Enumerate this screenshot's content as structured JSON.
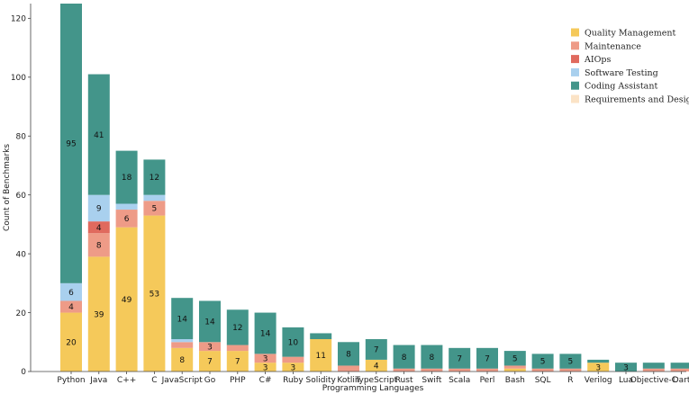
{
  "chart_data": {
    "type": "bar",
    "stacked": true,
    "xlabel": "Programming Languages",
    "ylabel": "Count of Benchmarks",
    "ylim": [
      0,
      125
    ],
    "yticks": [
      0,
      20,
      40,
      60,
      80,
      100,
      120
    ],
    "grid": false,
    "legend_position": "top-right",
    "categories": [
      "Python",
      "Java",
      "C++",
      "C",
      "JavaScript",
      "Go",
      "PHP",
      "C#",
      "Ruby",
      "Solidity",
      "Kotlin",
      "TypeScript",
      "Rust",
      "Swift",
      "Scala",
      "Perl",
      "Bash",
      "SQL",
      "R",
      "Verilog",
      "Lua",
      "Objective-C",
      "Dart"
    ],
    "series": [
      {
        "name": "Quality Management",
        "color": "#F5C95A",
        "values": [
          20,
          39,
          49,
          53,
          8,
          7,
          7,
          3,
          3,
          11,
          0,
          4,
          0,
          0,
          0,
          0,
          1,
          0,
          0,
          3,
          0,
          0,
          0
        ],
        "labels": [
          "20",
          "39",
          "49",
          "53",
          "8",
          "7",
          "7",
          "3",
          "3",
          "11",
          "",
          "4",
          "",
          "",
          "",
          "",
          "",
          "",
          "",
          "3",
          "",
          "",
          ""
        ]
      },
      {
        "name": "Maintenance",
        "color": "#EE9B87",
        "values": [
          4,
          8,
          6,
          5,
          2,
          3,
          2,
          3,
          2,
          0,
          2,
          0,
          1,
          1,
          1,
          1,
          1,
          1,
          1,
          0,
          0,
          1,
          1
        ],
        "labels": [
          "4",
          "8",
          "6",
          "5",
          "",
          "3",
          "",
          "3",
          "",
          "",
          "",
          "",
          "",
          "",
          "",
          "",
          "",
          "",
          "",
          "",
          "",
          "",
          ""
        ]
      },
      {
        "name": "AIOps",
        "color": "#E06A5E",
        "values": [
          0,
          4,
          0,
          0,
          0,
          0,
          0,
          0,
          0,
          0,
          0,
          0,
          0,
          0,
          0,
          0,
          0,
          0,
          0,
          0,
          0,
          0,
          0
        ],
        "labels": [
          "",
          "4",
          "",
          "",
          "",
          "",
          "",
          "",
          "",
          "",
          "",
          "",
          "",
          "",
          "",
          "",
          "",
          "",
          "",
          "",
          "",
          "",
          ""
        ]
      },
      {
        "name": "Software Testing",
        "color": "#A9D0EE",
        "values": [
          6,
          9,
          2,
          2,
          1,
          0,
          0,
          0,
          0,
          0,
          0,
          0,
          0,
          0,
          0,
          0,
          0,
          0,
          0,
          0,
          0,
          0,
          0
        ],
        "labels": [
          "6",
          "9",
          "",
          "",
          "",
          "",
          "",
          "",
          "",
          "",
          "",
          "",
          "",
          "",
          "",
          "",
          "",
          "",
          "",
          "",
          "",
          "",
          ""
        ]
      },
      {
        "name": "Coding Assistant",
        "color": "#43958A",
        "values": [
          95,
          41,
          18,
          12,
          14,
          14,
          12,
          14,
          10,
          2,
          8,
          7,
          8,
          8,
          7,
          7,
          5,
          5,
          5,
          1,
          3,
          2,
          2
        ],
        "labels": [
          "95",
          "41",
          "18",
          "12",
          "14",
          "14",
          "12",
          "14",
          "10",
          "",
          "8",
          "7",
          "8",
          "8",
          "7",
          "7",
          "5",
          "5",
          "5",
          "",
          "3",
          "",
          ""
        ]
      },
      {
        "name": "Requirements and Design",
        "color": "#FBE3C6",
        "values": [
          0,
          0,
          0,
          0,
          0,
          0,
          0,
          0,
          0,
          0,
          0,
          0,
          0,
          0,
          0,
          0,
          0,
          0,
          0,
          0,
          0,
          0,
          0
        ],
        "labels": [
          "",
          "",
          "",
          "",
          "",
          "",
          "",
          "",
          "",
          "",
          "",
          "",
          "",
          "",
          "",
          "",
          "",
          "",
          "",
          "",
          "",
          "",
          ""
        ]
      }
    ]
  }
}
